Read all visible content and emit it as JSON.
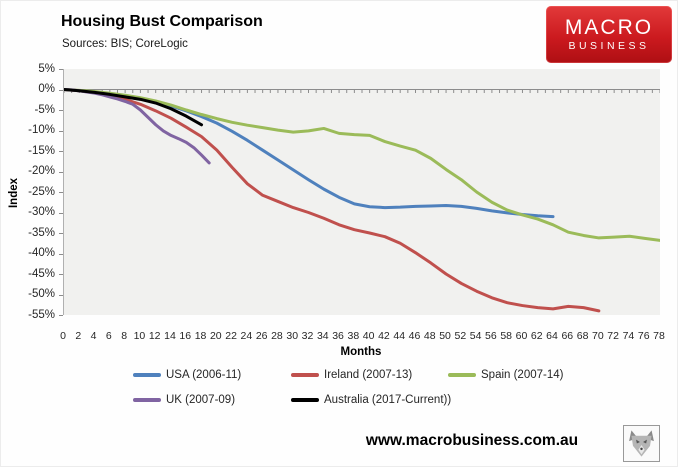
{
  "header": {
    "title": "Housing Bust Comparison",
    "subtitle": "Sources: BIS; CoreLogic"
  },
  "logo": {
    "line1": "MACRO",
    "line2": "BUSINESS",
    "bg_color": "#c4181c"
  },
  "footer": {
    "url": "www.macrobusiness.com.au",
    "stamp_icon": "wolf-logo"
  },
  "chart_data": {
    "type": "line",
    "title": "Housing Bust Comparison",
    "xlabel": "Months",
    "ylabel": "Index",
    "xlim": [
      0,
      78
    ],
    "ylim": [
      -55,
      5
    ],
    "grid": false,
    "zero_axis_line": true,
    "legend_position": "bottom",
    "plot_bg": "#f1f1ef",
    "axis_color": "#8c8c8c",
    "x_ticks": [
      0,
      2,
      4,
      6,
      8,
      10,
      12,
      14,
      16,
      18,
      20,
      22,
      24,
      26,
      28,
      30,
      32,
      34,
      36,
      38,
      40,
      42,
      44,
      46,
      48,
      50,
      52,
      54,
      56,
      58,
      60,
      62,
      64,
      66,
      68,
      70,
      72,
      74,
      76,
      78
    ],
    "y_ticks": [
      5,
      0,
      -5,
      -10,
      -15,
      -20,
      -25,
      -30,
      -35,
      -40,
      -45,
      -50,
      -55
    ],
    "y_tick_suffix": "%",
    "series": [
      {
        "key": "usa",
        "name": "USA (2006-11)",
        "color": "#4f81bd",
        "x": [
          0,
          2,
          4,
          6,
          8,
          10,
          12,
          14,
          16,
          18,
          20,
          22,
          24,
          26,
          28,
          30,
          32,
          34,
          36,
          38,
          40,
          42,
          44,
          46,
          48,
          50,
          52,
          54,
          56,
          58,
          60,
          62,
          64
        ],
        "values": [
          0,
          -0.3,
          -0.7,
          -1.1,
          -1.6,
          -2.2,
          -3.0,
          -4.0,
          -5.2,
          -6.6,
          -8.2,
          -10.2,
          -12.4,
          -14.8,
          -17.2,
          -19.6,
          -22.0,
          -24.3,
          -26.3,
          -27.9,
          -28.6,
          -28.8,
          -28.7,
          -28.5,
          -28.4,
          -28.3,
          -28.5,
          -29.0,
          -29.6,
          -30.1,
          -30.5,
          -30.8,
          -31.0
        ]
      },
      {
        "key": "ireland",
        "name": "Ireland (2007-13)",
        "color": "#c0504d",
        "x": [
          0,
          2,
          4,
          6,
          8,
          10,
          12,
          14,
          16,
          18,
          20,
          22,
          24,
          26,
          28,
          30,
          32,
          34,
          36,
          38,
          40,
          42,
          44,
          46,
          48,
          50,
          52,
          54,
          56,
          58,
          60,
          62,
          64,
          66,
          68,
          70
        ],
        "values": [
          0,
          -0.3,
          -0.8,
          -1.5,
          -2.4,
          -3.6,
          -5.2,
          -7.0,
          -9.2,
          -11.5,
          -14.8,
          -19.0,
          -23.0,
          -25.8,
          -27.3,
          -28.8,
          -30.0,
          -31.4,
          -33.0,
          -34.2,
          -35.0,
          -35.9,
          -37.5,
          -39.8,
          -42.3,
          -45.0,
          -47.3,
          -49.2,
          -50.8,
          -52.0,
          -52.7,
          -53.2,
          -53.5,
          -52.9,
          -53.2,
          -54.0
        ]
      },
      {
        "key": "spain",
        "name": "Spain (2007-14)",
        "color": "#9bbb59",
        "x": [
          0,
          2,
          4,
          6,
          8,
          10,
          12,
          14,
          16,
          18,
          20,
          22,
          24,
          26,
          28,
          30,
          32,
          34,
          36,
          38,
          40,
          42,
          44,
          46,
          48,
          50,
          52,
          54,
          56,
          58,
          60,
          62,
          64,
          66,
          68,
          70,
          72,
          74,
          76,
          78
        ],
        "values": [
          0,
          -0.2,
          -0.5,
          -0.9,
          -1.4,
          -2.0,
          -2.8,
          -3.8,
          -5.0,
          -6.1,
          -7.1,
          -8.0,
          -8.7,
          -9.3,
          -9.9,
          -10.4,
          -10.1,
          -9.5,
          -10.7,
          -11.0,
          -11.2,
          -12.7,
          -13.8,
          -14.8,
          -16.8,
          -19.5,
          -22.0,
          -25.0,
          -27.5,
          -29.4,
          -30.6,
          -31.6,
          -33.0,
          -34.8,
          -35.6,
          -36.2,
          -36.0,
          -35.8,
          -36.3,
          -36.8
        ]
      },
      {
        "key": "uk",
        "name": "UK (2007-09)",
        "color": "#8064a2",
        "x": [
          0,
          1,
          2,
          3,
          4,
          5,
          6,
          7,
          8,
          9,
          10,
          11,
          12,
          13,
          14,
          15,
          16,
          17,
          18,
          19
        ],
        "values": [
          0,
          -0.1,
          -0.3,
          -0.6,
          -0.9,
          -1.3,
          -1.8,
          -2.3,
          -2.9,
          -3.6,
          -5.0,
          -6.8,
          -8.6,
          -10.1,
          -11.2,
          -12.0,
          -12.9,
          -14.2,
          -16.0,
          -17.9
        ]
      },
      {
        "key": "australia",
        "name": "Australia (2017-Current))",
        "color": "#000000",
        "x": [
          0,
          2,
          4,
          6,
          8,
          10,
          12,
          14,
          16,
          18
        ],
        "values": [
          0,
          -0.3,
          -0.7,
          -1.2,
          -1.8,
          -2.4,
          -3.3,
          -4.7,
          -6.5,
          -8.6
        ]
      }
    ]
  }
}
